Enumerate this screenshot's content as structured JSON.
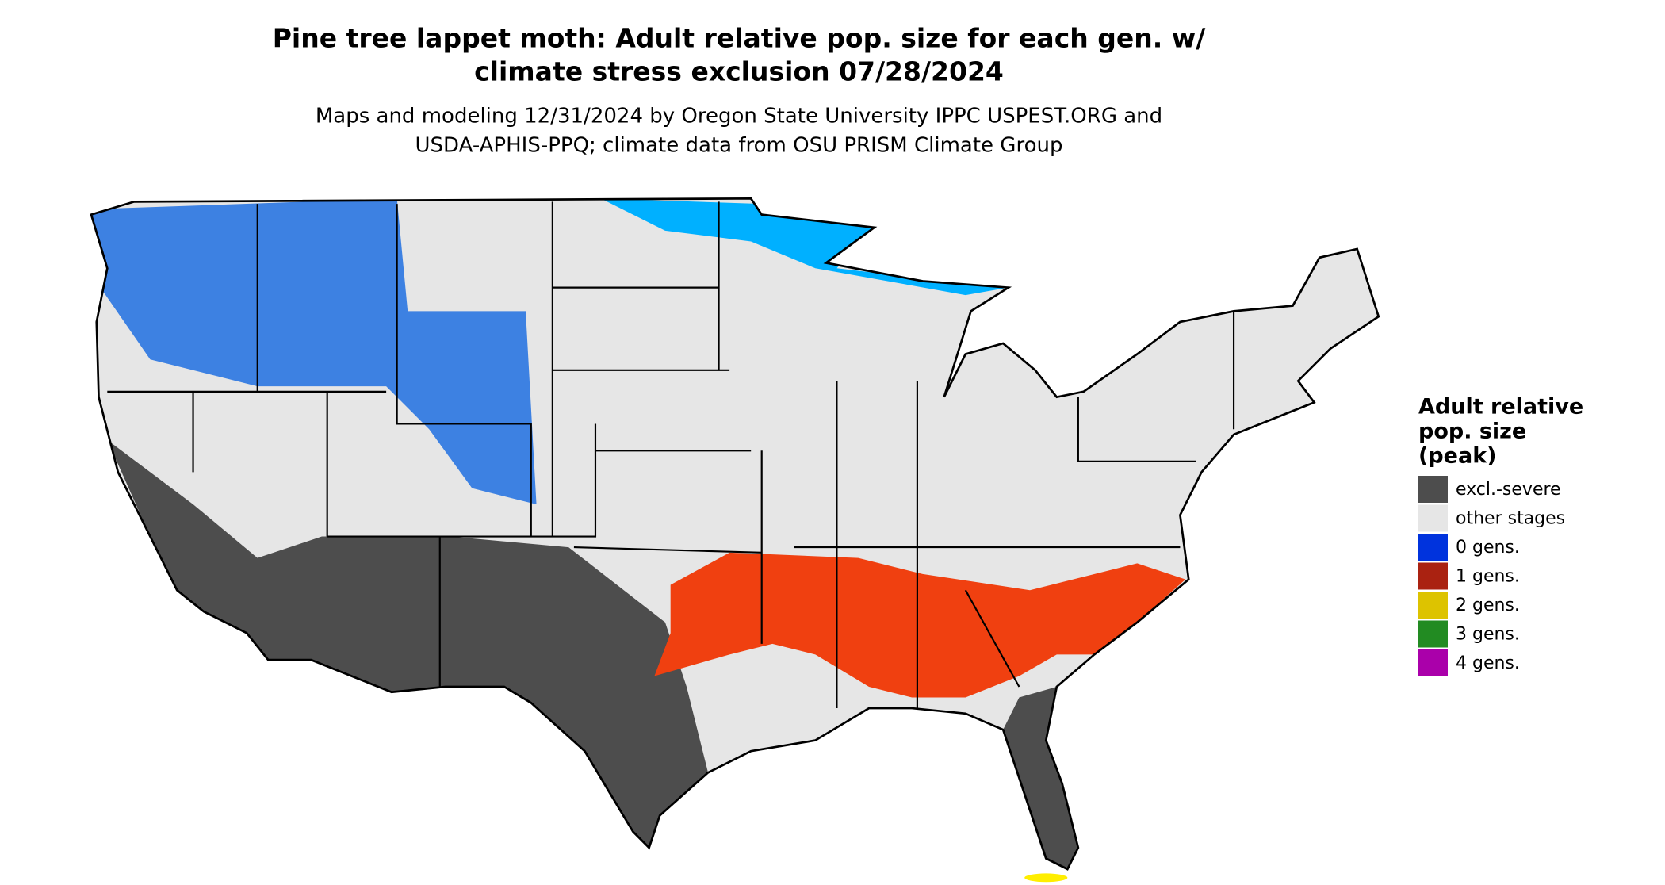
{
  "title": [
    "Pine tree lappet moth: Adult relative pop. size for each gen. w/",
    "climate stress exclusion 07/28/2024"
  ],
  "subtitle": [
    "Maps and modeling 12/31/2024 by Oregon State University IPPC USPEST.ORG and",
    "USDA-APHIS-PPQ; climate data from OSU PRISM Climate Group"
  ],
  "legend": {
    "title": [
      "Adult relative",
      "pop. size",
      "(peak)"
    ],
    "items": [
      {
        "label": "excl.-severe",
        "color": "#4d4d4d"
      },
      {
        "label": "other stages",
        "color": "#e6e6e6"
      },
      {
        "label": "0 gens.",
        "color": "#0033dd"
      },
      {
        "label": "1 gens.",
        "color": "#aa2211"
      },
      {
        "label": "2 gens.",
        "color": "#ddc300"
      },
      {
        "label": "3 gens.",
        "color": "#228b22"
      },
      {
        "label": "4 gens.",
        "color": "#aa00aa"
      }
    ]
  }
}
